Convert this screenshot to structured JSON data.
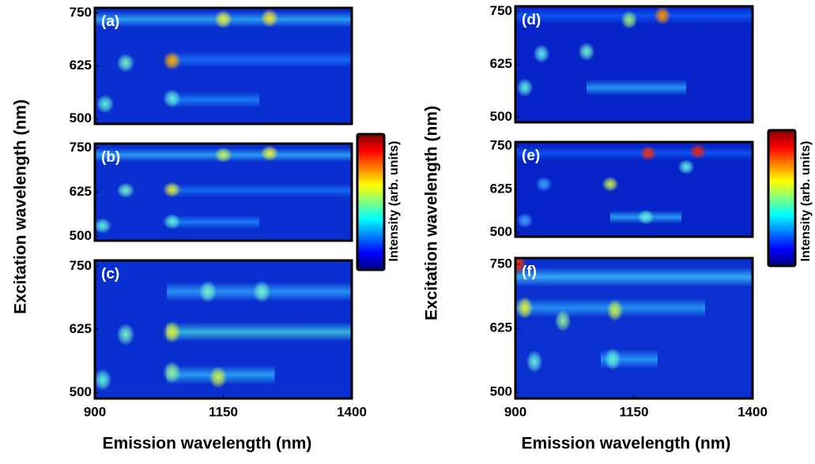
{
  "figures": [
    {
      "ylabel": "Excitation wavelength (nm)",
      "xlabel": "Emission wavelength (nm)",
      "colorbar_label": "Intensity (arb. units)"
    },
    {
      "ylabel": "Excitation wavelength (nm)",
      "xlabel": "Emission wavelength (nm)",
      "colorbar_label": "Intensity (arb. units)"
    }
  ],
  "colormap": [
    "#00007f",
    "#0000ff",
    "#0080ff",
    "#00ffff",
    "#80ff80",
    "#ffff00",
    "#ff8000",
    "#ff0000",
    "#800000"
  ],
  "chart_data": [
    {
      "type": "heatmap",
      "label": "(a)",
      "background": "#0a2fd0",
      "xlim": [
        900,
        1400
      ],
      "ylim": [
        488,
        762
      ],
      "yticks": [
        500,
        625,
        750
      ],
      "streaks": [
        {
          "y": 735,
          "x": [
            900,
            1400
          ],
          "color": "#30c0ff"
        },
        {
          "y": 545,
          "x": [
            1050,
            1220
          ],
          "color": "#1c90ff"
        },
        {
          "y": 640,
          "x": [
            1050,
            1400
          ],
          "color": "#1a7cff"
        }
      ],
      "spots": [
        {
          "x": 920,
          "y": 535,
          "color": "#60f0e0"
        },
        {
          "x": 960,
          "y": 632,
          "color": "#70f0d0"
        },
        {
          "x": 1050,
          "y": 637,
          "color": "#ffb000"
        },
        {
          "x": 1050,
          "y": 548,
          "color": "#60f0e0"
        },
        {
          "x": 1150,
          "y": 735,
          "color": "#e8f040"
        },
        {
          "x": 1240,
          "y": 738,
          "color": "#f0e030"
        }
      ]
    },
    {
      "type": "heatmap",
      "label": "(b)",
      "background": "#0a2fd0",
      "xlim": [
        900,
        1400
      ],
      "ylim": [
        488,
        762
      ],
      "yticks": [
        500,
        625,
        750
      ],
      "streaks": [
        {
          "y": 730,
          "x": [
            900,
            1400
          ],
          "color": "#30c0ff"
        },
        {
          "y": 540,
          "x": [
            1050,
            1220
          ],
          "color": "#1c90ff"
        },
        {
          "y": 630,
          "x": [
            1050,
            1400
          ],
          "color": "#1a7cff"
        }
      ],
      "spots": [
        {
          "x": 915,
          "y": 530,
          "color": "#60f0e0"
        },
        {
          "x": 960,
          "y": 630,
          "color": "#70f0d0"
        },
        {
          "x": 1050,
          "y": 632,
          "color": "#d8f040"
        },
        {
          "x": 1050,
          "y": 542,
          "color": "#60f0e0"
        },
        {
          "x": 1150,
          "y": 730,
          "color": "#c0f060"
        },
        {
          "x": 1240,
          "y": 735,
          "color": "#e8f040"
        }
      ]
    },
    {
      "type": "heatmap",
      "label": "(c)",
      "background": "#0a2fd0",
      "xlim": [
        900,
        1400
      ],
      "ylim": [
        488,
        762
      ],
      "yticks": [
        500,
        625,
        750
      ],
      "xticks": [
        900,
        1150,
        1400
      ],
      "streaks": [
        {
          "y": 620,
          "x": [
            1040,
            1400
          ],
          "color": "#40e0e0"
        },
        {
          "y": 535,
          "x": [
            1040,
            1250
          ],
          "color": "#30c0ff"
        },
        {
          "y": 700,
          "x": [
            1040,
            1400
          ],
          "color": "#30b0ff"
        }
      ],
      "spots": [
        {
          "x": 915,
          "y": 525,
          "color": "#60f0e0"
        },
        {
          "x": 960,
          "y": 615,
          "color": "#70f0d0"
        },
        {
          "x": 1050,
          "y": 620,
          "color": "#d8f040"
        },
        {
          "x": 1050,
          "y": 540,
          "color": "#90f0a0"
        },
        {
          "x": 1140,
          "y": 530,
          "color": "#c8f050"
        },
        {
          "x": 1120,
          "y": 700,
          "color": "#70f0d0"
        },
        {
          "x": 1225,
          "y": 700,
          "color": "#70f0d0"
        }
      ]
    },
    {
      "type": "heatmap",
      "label": "(d)",
      "background": "#0624c8",
      "xlim": [
        900,
        1400
      ],
      "ylim": [
        488,
        762
      ],
      "yticks": [
        500,
        625,
        750
      ],
      "streaks": [
        {
          "y": 570,
          "x": [
            1050,
            1260
          ],
          "color": "#30b8ff"
        },
        {
          "y": 740,
          "x": [
            900,
            1400
          ],
          "color": "#1060ff"
        }
      ],
      "spots": [
        {
          "x": 920,
          "y": 570,
          "color": "#60f0e0"
        },
        {
          "x": 955,
          "y": 650,
          "color": "#60e8f0"
        },
        {
          "x": 1050,
          "y": 655,
          "color": "#70f0d0"
        },
        {
          "x": 1140,
          "y": 730,
          "color": "#a0f080"
        },
        {
          "x": 1210,
          "y": 740,
          "color": "#ff9000"
        }
      ]
    },
    {
      "type": "heatmap",
      "label": "(e)",
      "background": "#0624c8",
      "xlim": [
        900,
        1400
      ],
      "ylim": [
        488,
        762
      ],
      "yticks": [
        500,
        625,
        750
      ],
      "streaks": [
        {
          "y": 545,
          "x": [
            1100,
            1250
          ],
          "color": "#30c0ff"
        },
        {
          "y": 730,
          "x": [
            900,
            1400
          ],
          "color": "#1060ff"
        }
      ],
      "spots": [
        {
          "x": 920,
          "y": 535,
          "color": "#40a0ff"
        },
        {
          "x": 960,
          "y": 640,
          "color": "#40a0ff"
        },
        {
          "x": 1100,
          "y": 640,
          "color": "#c8f050"
        },
        {
          "x": 1175,
          "y": 545,
          "color": "#60f0e0"
        },
        {
          "x": 1260,
          "y": 690,
          "color": "#60f0e0"
        },
        {
          "x": 1180,
          "y": 730,
          "color": "#ff3000"
        },
        {
          "x": 1285,
          "y": 735,
          "color": "#ff2000"
        }
      ]
    },
    {
      "type": "heatmap",
      "label": "(f)",
      "background": "#0a30d0",
      "xlim": [
        900,
        1400
      ],
      "ylim": [
        488,
        762
      ],
      "yticks": [
        500,
        625,
        750
      ],
      "xticks": [
        900,
        1150,
        1400
      ],
      "streaks": [
        {
          "y": 725,
          "x": [
            900,
            1400
          ],
          "color": "#40d0ff"
        },
        {
          "y": 665,
          "x": [
            900,
            1300
          ],
          "color": "#30b0ff"
        },
        {
          "y": 565,
          "x": [
            1080,
            1200
          ],
          "color": "#30b0ff"
        }
      ],
      "spots": [
        {
          "x": 905,
          "y": 752,
          "color": "#ff3000"
        },
        {
          "x": 920,
          "y": 665,
          "color": "#e0f040"
        },
        {
          "x": 1000,
          "y": 640,
          "color": "#90f0a0"
        },
        {
          "x": 1110,
          "y": 660,
          "color": "#c8f050"
        },
        {
          "x": 940,
          "y": 560,
          "color": "#60f0e0"
        },
        {
          "x": 1105,
          "y": 565,
          "color": "#60f0e0"
        }
      ]
    }
  ]
}
